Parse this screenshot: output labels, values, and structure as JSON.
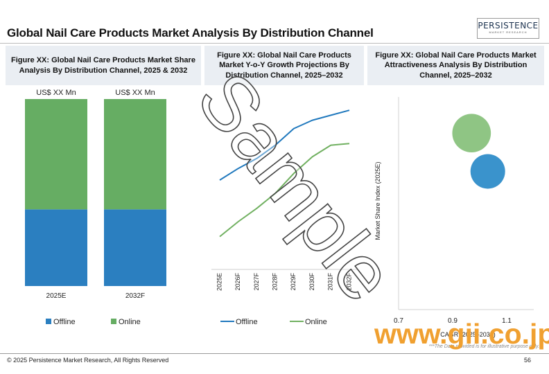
{
  "title": "Global Nail Care Products Market Analysis By Distribution Channel",
  "logo": {
    "name": "PERSISTENCE",
    "tagline": "MARKET RESEARCH"
  },
  "chart_data": [
    {
      "type": "stacked-bar",
      "title": "Figure XX: Global Nail Care Products  Market Share Analysis By Distribution Channel, 2025 & 2032",
      "categories": [
        "2025E",
        "2032F"
      ],
      "total_labels": [
        "US$ XX Mn",
        "US$ XX Mn"
      ],
      "ylim": [
        0,
        100
      ],
      "series": [
        {
          "name": "Offline",
          "color": "#2b7fc0",
          "values": [
            41,
            41
          ]
        },
        {
          "name": "Online",
          "color": "#66ad63",
          "values": [
            59,
            59
          ]
        }
      ],
      "legend": "bottom"
    },
    {
      "type": "line",
      "title": "Figure XX: Global Nail Care Products  Market Y-o-Y Growth Projections By Distribution Channel, 2025–2032",
      "categories": [
        "2025E",
        "2026F",
        "2027F",
        "2028F",
        "2029F",
        "2030F",
        "2031F",
        "2032F"
      ],
      "ylim": [
        0,
        100
      ],
      "series": [
        {
          "name": "Offline",
          "color": "#1f78bd",
          "values": [
            50,
            57,
            63,
            71,
            81,
            86,
            89,
            92
          ]
        },
        {
          "name": "Online",
          "color": "#70b060",
          "values": [
            16,
            25,
            33,
            42,
            54,
            64,
            71,
            72
          ]
        }
      ],
      "legend": "bottom"
    },
    {
      "type": "bubble",
      "title": "Figure XX: Global Nail Care Products  Market Attractiveness Analysis By Distribution Channel, 2025–2032",
      "x_label": "CAGR (2025–2032)",
      "y_label": "Market Share Index (2025E)",
      "xlim": [
        0.7,
        1.2
      ],
      "xticks": [
        0.7,
        0.9,
        1.1
      ],
      "ylim": [
        0,
        1
      ],
      "series": [
        {
          "color": "#8fc584",
          "x": [
            0.97
          ],
          "values": [
            0.83
          ],
          "sizes": [
            31
          ]
        },
        {
          "color": "#3a93cc",
          "x": [
            1.03
          ],
          "values": [
            0.65
          ],
          "sizes": [
            25
          ]
        }
      ]
    }
  ],
  "disclaimer": "***The Data provided is for illustrative purpose only.",
  "footer": "© 2025 Persistence Market Research, All Rights Reserved",
  "page_number": "56",
  "watermark": "Sample",
  "site_watermark": "www.gii.co.jp"
}
